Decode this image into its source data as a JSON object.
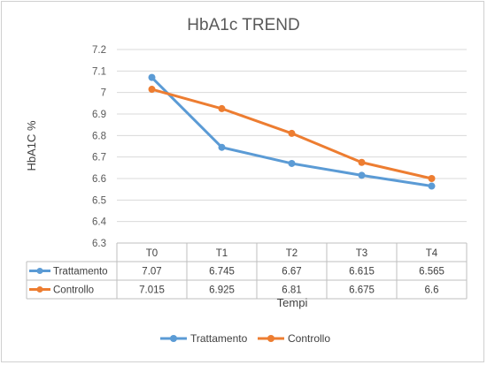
{
  "chart_data": {
    "type": "line",
    "title": "HbA1c TREND",
    "xlabel": "Tempi",
    "ylabel": "HbA1C %",
    "categories": [
      "T0",
      "T1",
      "T2",
      "T3",
      "T4"
    ],
    "ylim": [
      6.3,
      7.2
    ],
    "yticks": [
      "7.2",
      "7.1",
      "7",
      "6.9",
      "6.8",
      "6.7",
      "6.6",
      "6.5",
      "6.4",
      "6.3"
    ],
    "grid": true,
    "legend_position": "bottom",
    "data_table": true,
    "series": [
      {
        "name": "Trattamento",
        "color": "#5b9bd5",
        "values": [
          7.07,
          6.745,
          6.67,
          6.615,
          6.565
        ],
        "labels": [
          "7.07",
          "6.745",
          "6.67",
          "6.615",
          "6.565"
        ]
      },
      {
        "name": "Controllo",
        "color": "#ed7d31",
        "values": [
          7.015,
          6.925,
          6.81,
          6.675,
          6.6
        ],
        "labels": [
          "7.015",
          "6.925",
          "6.81",
          "6.675",
          "6.6"
        ]
      }
    ]
  }
}
